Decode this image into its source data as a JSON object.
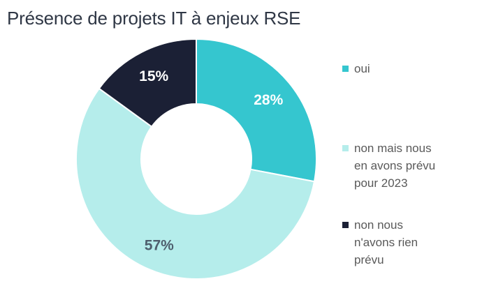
{
  "chart_data": {
    "type": "pie",
    "subtype": "donut",
    "title": "Présence de projets IT à enjeux RSE",
    "categories": [
      "oui",
      "non mais nous en avons prévu pour 2023",
      "non nous n'avons rien prévu"
    ],
    "values": [
      28,
      57,
      15
    ],
    "unit": "%",
    "percent_labels": [
      "28%",
      "57%",
      "15%"
    ],
    "colors": [
      "#35c6cf",
      "#b5edeb",
      "#1b2035"
    ],
    "label_colors": [
      "#ffffff",
      "#4e5f6d",
      "#ffffff"
    ],
    "separator_color": "#ffffff",
    "start_angle_deg": 0,
    "direction": "clockwise",
    "inner_radius_ratio": 0.46,
    "legend_position": "right",
    "title_color": "#2f3745",
    "legend_text_color": "#595959"
  },
  "legend": {
    "items": [
      {
        "label": "oui"
      },
      {
        "label": "non mais nous en avons prévu pour 2023"
      },
      {
        "label": "non nous n'avons rien prévu"
      }
    ]
  }
}
